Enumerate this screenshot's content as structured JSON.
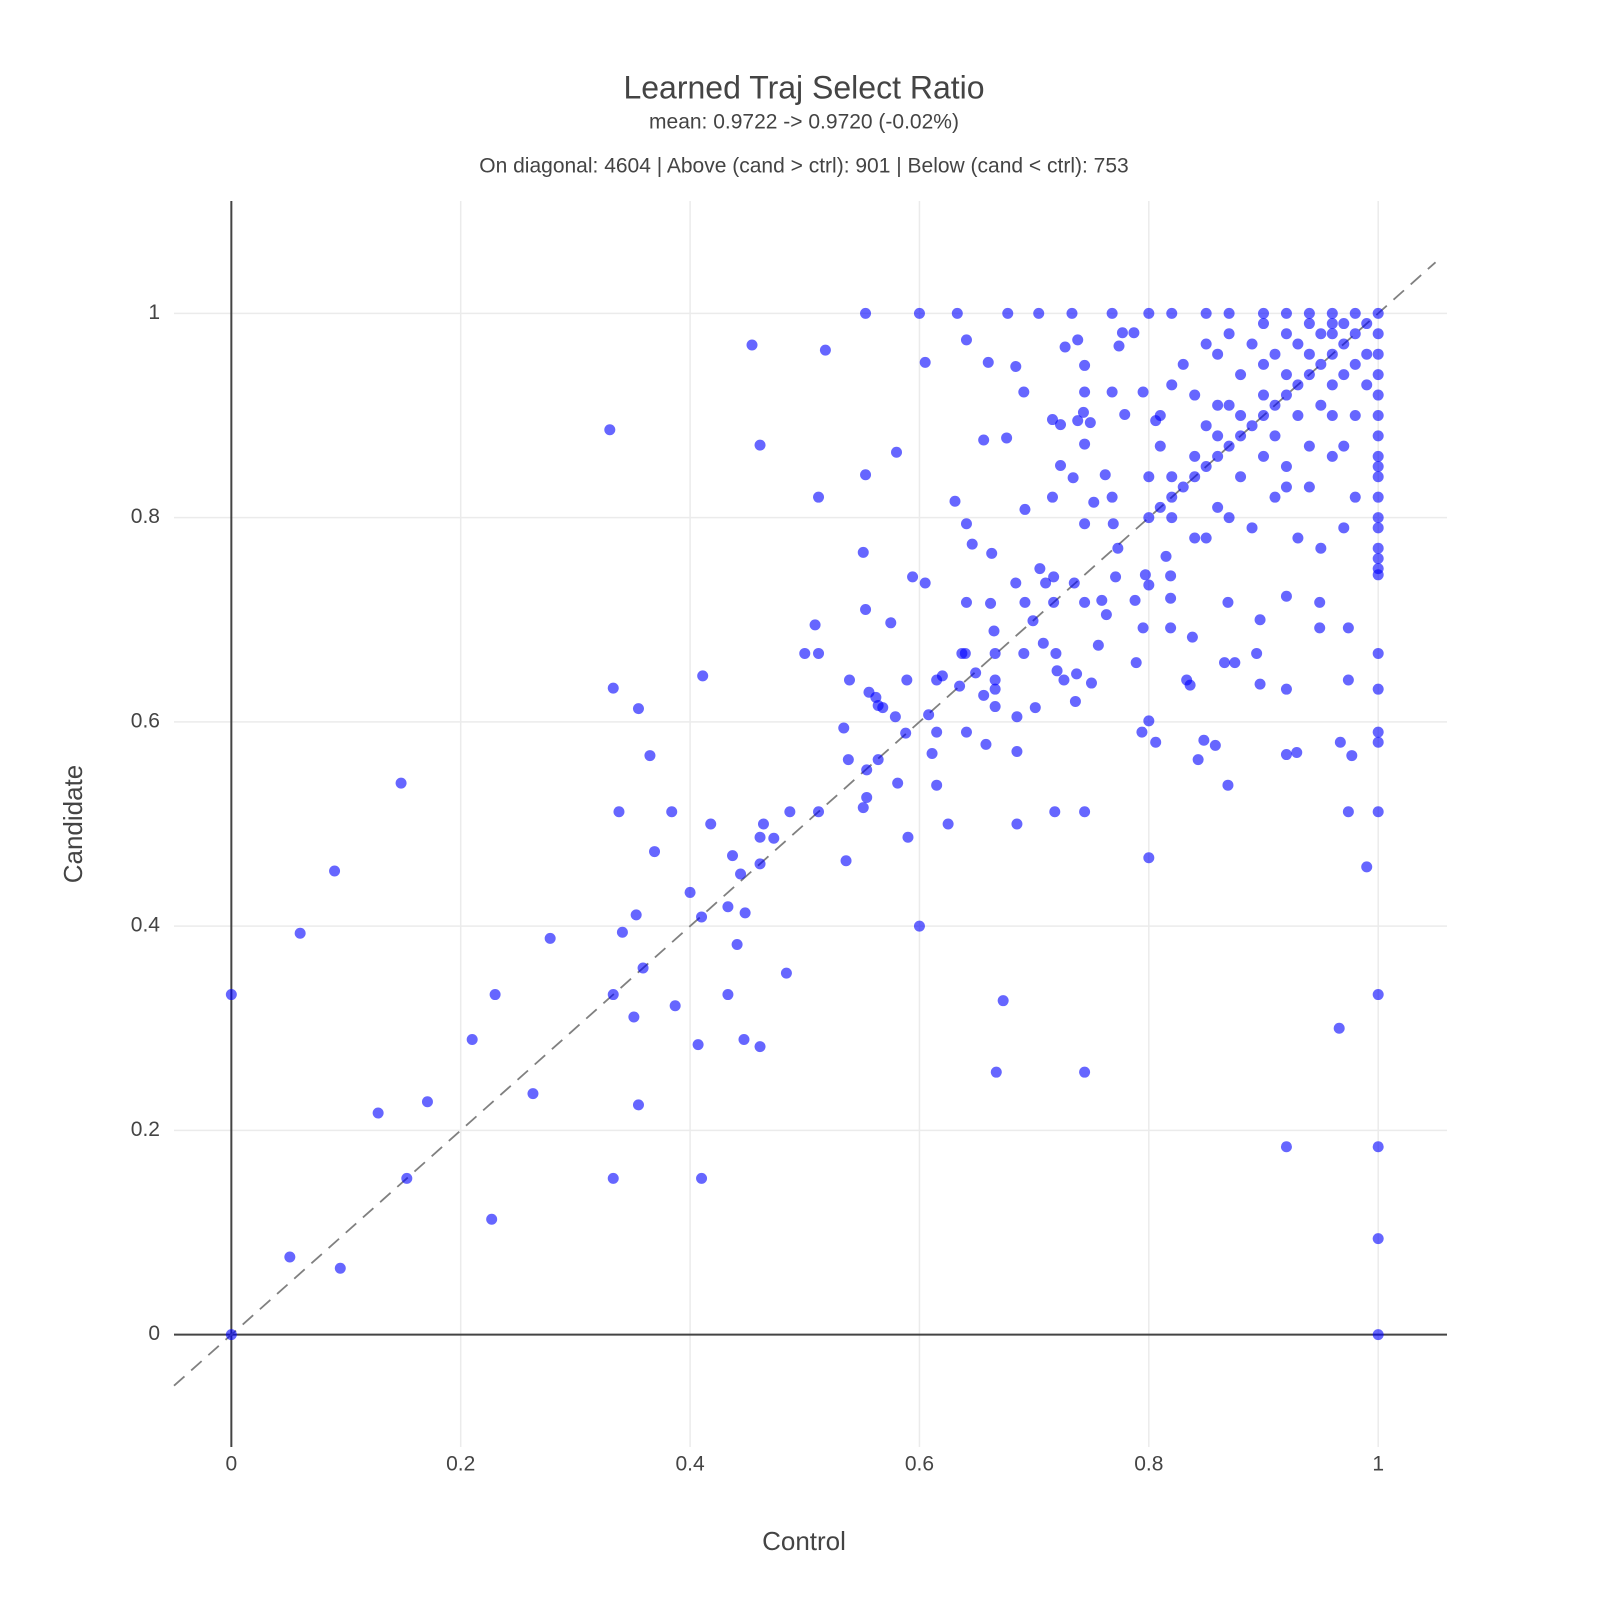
{
  "chart_data": {
    "type": "scatter",
    "title": "Learned Traj Select Ratio",
    "subtitle": "mean: 0.9722 -> 0.9720 (-0.02%)",
    "annotation": "On diagonal: 4604 | Above (cand > ctrl): 901 | Below (cand < ctrl): 753",
    "x_label": "Control",
    "y_label": "Candidate",
    "xlim": [
      -0.05,
      1.06
    ],
    "ylim": [
      -0.11,
      1.11
    ],
    "xticks": [
      0,
      0.2,
      0.4,
      0.6,
      0.8,
      1
    ],
    "yticks": [
      0,
      0.2,
      0.4,
      0.6,
      0.8,
      1
    ],
    "grid": true,
    "zeroline": true,
    "color": "#0000ff",
    "opacity": 0.6,
    "reference_line": {
      "x": [
        -0.05,
        1.05
      ],
      "values": [
        -0.05,
        1.05
      ],
      "color": "#808080",
      "dash": true
    },
    "x": [
      0,
      0,
      0.051,
      0.095,
      0.06,
      0.09,
      0.128,
      0.153,
      0.148,
      0.171,
      0.21,
      0.227,
      0.23,
      0.263,
      0.278,
      0.33,
      0.333,
      0.333,
      0.333,
      0.338,
      0.341,
      0.351,
      0.353,
      0.355,
      0.355,
      0.359,
      0.365,
      0.369,
      0.384,
      0.387,
      0.4,
      0.407,
      0.41,
      0.41,
      0.411,
      0.418,
      0.433,
      0.433,
      0.437,
      0.441,
      0.444,
      0.447,
      0.448,
      0.454,
      0.461,
      0.461,
      0.461,
      0.461,
      0.464,
      0.473,
      0.484,
      0.487,
      0.5,
      0.509,
      0.512,
      0.512,
      0.512,
      0.518,
      0.534,
      0.536,
      0.538,
      0.539,
      0.551,
      0.551,
      0.553,
      0.553,
      0.553,
      0.554,
      0.554,
      0.556,
      0.562,
      0.564,
      0.564,
      0.568,
      0.575,
      0.58,
      0.581,
      0.579,
      0.588,
      0.589,
      0.59,
      0.594,
      0.6,
      0.6,
      0.605,
      0.605,
      0.608,
      0.611,
      0.615,
      0.615,
      0.615,
      0.62,
      0.625,
      0.631,
      0.633,
      0.635,
      0.637,
      0.64,
      0.641,
      0.641,
      0.641,
      0.641,
      0.646,
      0.649,
      0.656,
      0.656,
      0.658,
      0.66,
      0.662,
      0.663,
      0.665,
      0.666,
      0.666,
      0.666,
      0.666,
      0.667,
      0.673,
      0.676,
      0.677,
      0.684,
      0.684,
      0.685,
      0.685,
      0.685,
      0.691,
      0.691,
      0.692,
      0.692,
      0.699,
      0.701,
      0.704,
      0.705,
      0.708,
      0.71,
      0.716,
      0.716,
      0.717,
      0.717,
      0.718,
      0.719,
      0.72,
      0.723,
      0.723,
      0.726,
      0.727,
      0.733,
      0.734,
      0.735,
      0.736,
      0.737,
      0.738,
      0.738,
      0.743,
      0.744,
      0.744,
      0.744,
      0.744,
      0.744,
      0.744,
      0.744,
      0.749,
      0.75,
      0.752,
      0.756,
      0.759,
      0.762,
      0.763,
      0.768,
      0.768,
      0.768,
      0.769,
      0.771,
      0.773,
      0.774,
      0.777,
      0.787,
      0.779,
      0.788,
      0.789,
      0.794,
      0.795,
      0.795,
      0.797,
      0.8,
      0.8,
      0.8,
      0.806,
      0.806,
      0.815,
      0.819,
      0.819,
      0.819,
      0.833,
      0.836,
      0.838,
      0.843,
      0.848,
      0.858,
      0.866,
      0.869,
      0.869,
      0.875,
      0.894,
      0.897,
      0.897,
      0.92,
      0.92,
      0.92,
      0.92,
      0.929,
      0.949,
      0.949,
      0.966,
      0.967,
      0.974,
      0.974,
      0.974,
      0.977,
      0.99,
      1,
      1,
      1,
      1,
      1,
      1,
      1,
      1,
      1,
      1,
      1,
      1,
      1,
      1,
      1,
      1,
      1,
      1,
      1,
      1,
      1,
      1,
      1,
      1,
      1,
      1,
      0.8,
      0.82,
      0.85,
      0.87,
      0.9,
      0.92,
      0.94,
      0.96,
      0.98,
      0.8,
      0.81,
      0.82,
      0.83,
      0.84,
      0.85,
      0.86,
      0.87,
      0.88,
      0.89,
      0.9,
      0.91,
      0.92,
      0.93,
      0.94,
      0.95,
      0.96,
      0.97,
      0.98,
      0.99,
      0.82,
      0.84,
      0.86,
      0.88,
      0.9,
      0.92,
      0.94,
      0.96,
      0.97,
      0.81,
      0.82,
      0.83,
      0.85,
      0.86,
      0.87,
      0.88,
      0.89,
      0.9,
      0.91,
      0.92,
      0.93,
      0.94,
      0.95,
      0.96,
      0.84,
      0.86,
      0.9,
      0.8,
      0.81,
      0.85,
      0.87,
      0.82,
      0.84,
      0.86,
      0.88,
      0.9,
      0.91,
      0.92,
      0.93,
      0.94,
      0.95,
      0.96,
      0.97,
      0.98,
      0.99,
      0.98,
      0.97,
      0.95,
      0.93,
      0.91,
      0.89,
      0.87,
      0.85,
      0.96,
      0.94,
      0.92,
      0.98,
      0.99,
      0.96,
      0.97
    ],
    "values": [
      0.333,
      0,
      0.076,
      0.065,
      0.393,
      0.454,
      0.217,
      0.153,
      0.54,
      0.228,
      0.289,
      0.113,
      0.333,
      0.236,
      0.388,
      0.886,
      0.633,
      0.333,
      0.153,
      0.512,
      0.394,
      0.311,
      0.411,
      0.613,
      0.225,
      0.359,
      0.567,
      0.473,
      0.512,
      0.322,
      0.433,
      0.284,
      0.409,
      0.153,
      0.645,
      0.5,
      0.333,
      0.419,
      0.469,
      0.382,
      0.451,
      0.289,
      0.413,
      0.969,
      0.871,
      0.487,
      0.461,
      0.282,
      0.5,
      0.486,
      0.354,
      0.512,
      0.667,
      0.695,
      0.82,
      0.667,
      0.512,
      0.964,
      0.594,
      0.464,
      0.563,
      0.641,
      0.766,
      0.516,
      1,
      0.71,
      0.842,
      0.553,
      0.526,
      0.629,
      0.624,
      0.563,
      0.616,
      0.614,
      0.697,
      0.864,
      0.54,
      0.605,
      0.589,
      0.641,
      0.487,
      0.742,
      1,
      0.4,
      0.952,
      0.736,
      0.607,
      0.569,
      0.59,
      0.538,
      0.641,
      0.645,
      0.5,
      0.816,
      1,
      0.635,
      0.667,
      0.667,
      0.974,
      0.59,
      0.717,
      0.794,
      0.774,
      0.648,
      0.876,
      0.626,
      0.578,
      0.952,
      0.716,
      0.765,
      0.689,
      0.667,
      0.641,
      0.632,
      0.615,
      0.257,
      0.327,
      0.878,
      1,
      0.948,
      0.736,
      0.605,
      0.5,
      0.571,
      0.923,
      0.667,
      0.808,
      0.717,
      0.699,
      0.614,
      1,
      0.75,
      0.677,
      0.736,
      0.896,
      0.82,
      0.742,
      0.717,
      0.512,
      0.667,
      0.65,
      0.891,
      0.851,
      0.641,
      0.967,
      1,
      0.839,
      0.736,
      0.62,
      0.647,
      0.974,
      0.895,
      0.903,
      0.949,
      0.872,
      0.512,
      0.257,
      0.717,
      0.794,
      0.923,
      0.893,
      0.638,
      0.815,
      0.675,
      0.719,
      0.842,
      0.705,
      1,
      0.923,
      0.82,
      0.794,
      0.742,
      0.77,
      0.968,
      0.981,
      0.981,
      0.901,
      0.719,
      0.658,
      0.59,
      0.692,
      0.923,
      0.744,
      0.734,
      0.601,
      0.467,
      0.58,
      0.895,
      0.762,
      0.692,
      0.743,
      0.721,
      0.641,
      0.636,
      0.683,
      0.563,
      0.582,
      0.577,
      0.658,
      0.538,
      0.717,
      0.658,
      0.667,
      0.637,
      0.7,
      0.723,
      0.568,
      0.184,
      0.632,
      0.57,
      0.692,
      0.717,
      0.3,
      0.58,
      0.512,
      0.641,
      0.692,
      0.567,
      0.458,
      0,
      0.094,
      0.184,
      0.333,
      0.512,
      0.58,
      0.59,
      0.632,
      0.667,
      0.744,
      0.75,
      0.76,
      0.77,
      0.79,
      0.8,
      0.82,
      0.84,
      0.85,
      0.86,
      0.88,
      0.9,
      0.92,
      0.94,
      0.96,
      0.98,
      1,
      1,
      1,
      1,
      1,
      1,
      1,
      1,
      1,
      1,
      0.8,
      0.81,
      0.82,
      0.83,
      0.84,
      0.85,
      0.86,
      0.87,
      0.88,
      0.89,
      0.9,
      0.91,
      0.92,
      0.93,
      0.94,
      0.95,
      0.96,
      0.97,
      0.98,
      0.99,
      0.84,
      0.86,
      0.88,
      0.9,
      0.92,
      0.94,
      0.96,
      0.98,
      0.99,
      0.87,
      0.93,
      0.95,
      0.97,
      0.96,
      0.98,
      0.94,
      0.97,
      0.99,
      0.96,
      0.98,
      0.97,
      0.99,
      0.98,
      0.99,
      0.92,
      0.91,
      0.95,
      0.84,
      0.9,
      0.89,
      0.91,
      0.8,
      0.78,
      0.81,
      0.84,
      0.86,
      0.88,
      0.85,
      0.9,
      0.87,
      0.91,
      0.93,
      0.94,
      0.95,
      0.96,
      0.82,
      0.79,
      0.77,
      0.78,
      0.82,
      0.79,
      0.8,
      0.78,
      0.86,
      0.83,
      0.83,
      0.9,
      0.93,
      0.9,
      0.87
    ]
  }
}
